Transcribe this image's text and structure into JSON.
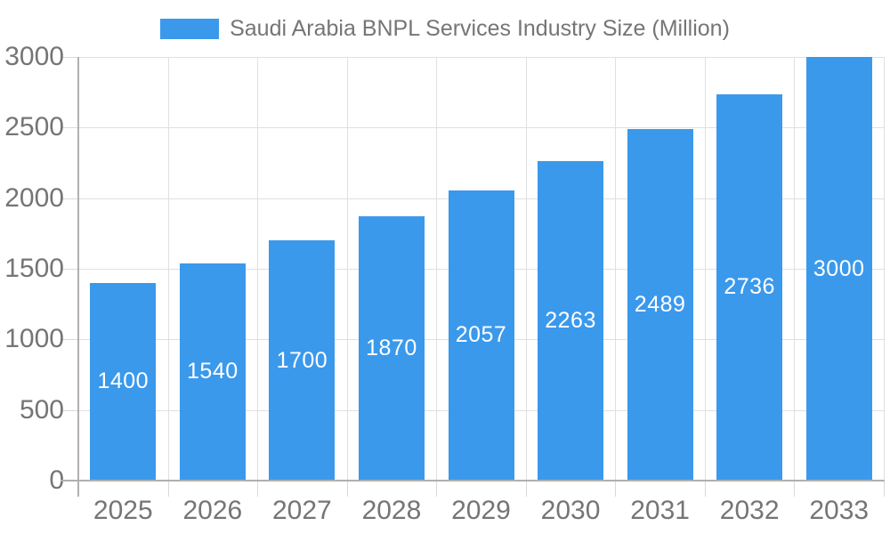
{
  "chart_data": {
    "type": "bar",
    "title": "Saudi Arabia BNPL Services Industry Size (Million)",
    "legend": [
      "Saudi Arabia BNPL Services Industry Size (Million)"
    ],
    "legend_position": "top",
    "categories": [
      "2025",
      "2026",
      "2027",
      "2028",
      "2029",
      "2030",
      "2031",
      "2032",
      "2033"
    ],
    "values": [
      1400,
      1540,
      1700,
      1870,
      2057,
      2263,
      2489,
      2736,
      3000
    ],
    "xlabel": "",
    "ylabel": "",
    "ylim": [
      0,
      3000
    ],
    "yticks": [
      0,
      500,
      1000,
      1500,
      2000,
      2500,
      3000
    ],
    "grid": true,
    "bar_value_labels_visible": true
  },
  "colors": {
    "bar": "#3b99ec",
    "bar_label": "#ffffff",
    "grid": "#e0e0e0",
    "axis": "#b0b0b0",
    "tick": "#d9d9d9",
    "label": "#757575",
    "background": "#ffffff"
  }
}
